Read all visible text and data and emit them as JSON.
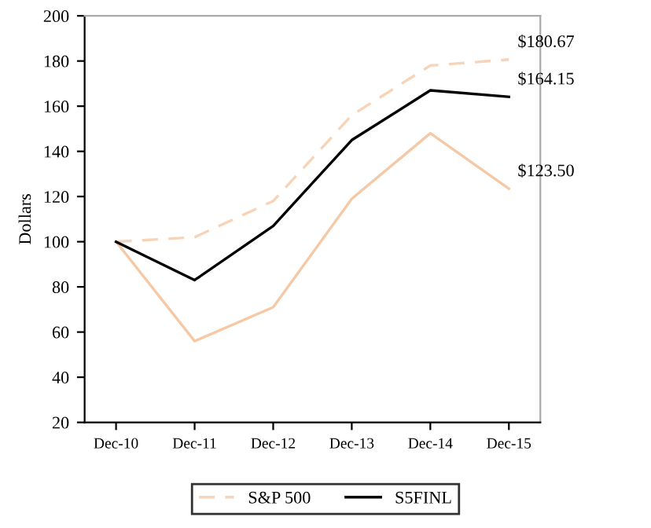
{
  "chart_data": {
    "type": "line",
    "ylabel": "Dollars",
    "categories": [
      "Dec-10",
      "Dec-11",
      "Dec-12",
      "Dec-13",
      "Dec-14",
      "Dec-15"
    ],
    "series": [
      {
        "color": "#f5c9a6",
        "line_style": "solid",
        "values": [
          100,
          56,
          71,
          119,
          148,
          123.5
        ],
        "value_labels": [
          null,
          null,
          null,
          null,
          null,
          "$123.50"
        ]
      },
      {
        "name": "S&P 500",
        "color": "#f7d3b8",
        "line_style": "dashed",
        "values": [
          100,
          102,
          118,
          156,
          178,
          180.67
        ],
        "value_labels": [
          null,
          null,
          null,
          null,
          null,
          "$180.67"
        ]
      },
      {
        "name": "S5FINL",
        "color": "#000000",
        "line_style": "solid",
        "values": [
          100,
          83,
          107,
          145,
          167,
          164.15
        ],
        "value_labels": [
          null,
          null,
          null,
          null,
          null,
          "$164.15"
        ]
      }
    ],
    "ylim": [
      20,
      200
    ],
    "yticks": [
      20,
      40,
      60,
      80,
      100,
      120,
      140,
      160,
      180,
      200
    ],
    "grid": false,
    "legend": "bottom",
    "marker": "none"
  }
}
